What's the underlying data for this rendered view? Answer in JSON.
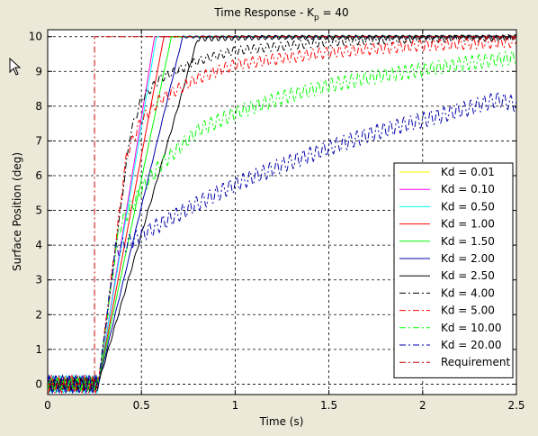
{
  "chart_data": {
    "type": "line",
    "title_main": "Time Response - K",
    "title_sub": "p",
    "title_tail": " = 40",
    "xlabel": "Time (s)",
    "ylabel": "Surface Position (deg)",
    "xlim": [
      0,
      2.5
    ],
    "ylim": [
      -0.3,
      10.2
    ],
    "xticks": [
      "0",
      "0.5",
      "1",
      "1.5",
      "2",
      "2.5"
    ],
    "xtick_values": [
      0,
      0.5,
      1,
      1.5,
      2,
      2.5
    ],
    "yticks": [
      "0",
      "1",
      "2",
      "3",
      "4",
      "5",
      "6",
      "7",
      "8",
      "9",
      "10"
    ],
    "ytick_values": [
      0,
      1,
      2,
      3,
      4,
      5,
      6,
      7,
      8,
      9,
      10
    ],
    "grid": true,
    "grid_style": "dashed",
    "legend_position": "lower-right",
    "series": [
      {
        "name": "Kd = 0.01",
        "color": "#ffff00",
        "dash": "solid",
        "rise_start": 0.27,
        "reach_time": 0.57,
        "tail": [
          [
            0.57,
            10.0
          ],
          [
            2.5,
            10.0
          ]
        ],
        "ripple": 0.0
      },
      {
        "name": "Kd = 0.10",
        "color": "#ff00ff",
        "dash": "solid",
        "rise_start": 0.27,
        "reach_time": 0.57,
        "tail": [
          [
            0.57,
            10.0
          ],
          [
            2.5,
            10.0
          ]
        ],
        "ripple": 0.0
      },
      {
        "name": "Kd = 0.50",
        "color": "#00ffff",
        "dash": "solid",
        "rise_start": 0.27,
        "reach_time": 0.58,
        "tail": [
          [
            0.58,
            10.0
          ],
          [
            2.5,
            10.0
          ]
        ],
        "ripple": 0.0
      },
      {
        "name": "Kd = 1.00",
        "color": "#ff0000",
        "dash": "solid",
        "rise_start": 0.27,
        "reach_time": 0.62,
        "tail": [
          [
            0.62,
            10.0
          ],
          [
            2.5,
            10.0
          ]
        ],
        "ripple": 0.0
      },
      {
        "name": "Kd = 1.50",
        "color": "#00ff00",
        "dash": "solid",
        "rise_start": 0.27,
        "reach_time": 0.66,
        "tail": [
          [
            0.66,
            10.0
          ],
          [
            2.5,
            10.0
          ]
        ],
        "ripple": 0.02
      },
      {
        "name": "Kd = 2.00",
        "color": "#0000aa",
        "dash": "solid",
        "rise_start": 0.27,
        "reach_time": 0.72,
        "tail": [
          [
            0.72,
            10.0
          ],
          [
            2.5,
            10.0
          ]
        ],
        "ripple": 0.04
      },
      {
        "name": "Kd = 2.50",
        "color": "#000000",
        "dash": "solid",
        "rise_start": 0.27,
        "reach_time": 0.8,
        "tail": [
          [
            0.8,
            9.95
          ],
          [
            1.2,
            10.0
          ],
          [
            2.5,
            10.0
          ]
        ],
        "ripple": 0.08
      },
      {
        "name": "Kd = 4.00",
        "color": "#000000",
        "dash": "dashdot",
        "rise_start": 0.27,
        "reach_time": 0.44,
        "tail": [
          [
            0.44,
            7.2
          ],
          [
            0.5,
            8.2
          ],
          [
            0.6,
            8.8
          ],
          [
            0.8,
            9.3
          ],
          [
            1.0,
            9.6
          ],
          [
            1.5,
            9.85
          ],
          [
            2.0,
            9.95
          ],
          [
            2.5,
            10.0
          ]
        ],
        "ripple": 0.12
      },
      {
        "name": "Kd = 5.00",
        "color": "#ff0000",
        "dash": "dashdot",
        "rise_start": 0.27,
        "reach_time": 0.42,
        "tail": [
          [
            0.42,
            6.6
          ],
          [
            0.5,
            7.6
          ],
          [
            0.6,
            8.2
          ],
          [
            0.8,
            8.8
          ],
          [
            1.0,
            9.2
          ],
          [
            1.5,
            9.55
          ],
          [
            2.0,
            9.75
          ],
          [
            2.5,
            9.85
          ]
        ],
        "ripple": 0.16
      },
      {
        "name": "Kd = 10.00",
        "color": "#00ff00",
        "dash": "dashdot",
        "rise_start": 0.27,
        "reach_time": 0.38,
        "tail": [
          [
            0.38,
            4.5
          ],
          [
            0.5,
            5.6
          ],
          [
            0.6,
            6.3
          ],
          [
            0.8,
            7.3
          ],
          [
            1.0,
            7.8
          ],
          [
            1.25,
            8.25
          ],
          [
            1.5,
            8.6
          ],
          [
            1.75,
            8.85
          ],
          [
            2.0,
            9.05
          ],
          [
            2.25,
            9.25
          ],
          [
            2.5,
            9.4
          ]
        ],
        "ripple": 0.2
      },
      {
        "name": "Kd = 20.00",
        "color": "#0000aa",
        "dash": "dashdot",
        "rise_start": 0.27,
        "reach_time": 0.36,
        "tail": [
          [
            0.36,
            3.85
          ],
          [
            0.5,
            4.3
          ],
          [
            0.6,
            4.6
          ],
          [
            0.8,
            5.2
          ],
          [
            1.0,
            5.75
          ],
          [
            1.25,
            6.3
          ],
          [
            1.5,
            6.8
          ],
          [
            1.75,
            7.25
          ],
          [
            2.0,
            7.6
          ],
          [
            2.25,
            7.95
          ],
          [
            2.4,
            8.2
          ],
          [
            2.5,
            8.05
          ]
        ],
        "ripple": 0.22
      },
      {
        "name": "Requirement",
        "color": "#cc0000",
        "dash": "dashdot",
        "points": [
          [
            0,
            0
          ],
          [
            0.25,
            0
          ],
          [
            0.25,
            10
          ],
          [
            0.5,
            10
          ],
          [
            1,
            10
          ],
          [
            2.5,
            10
          ]
        ],
        "ripple": 0.0
      }
    ]
  }
}
